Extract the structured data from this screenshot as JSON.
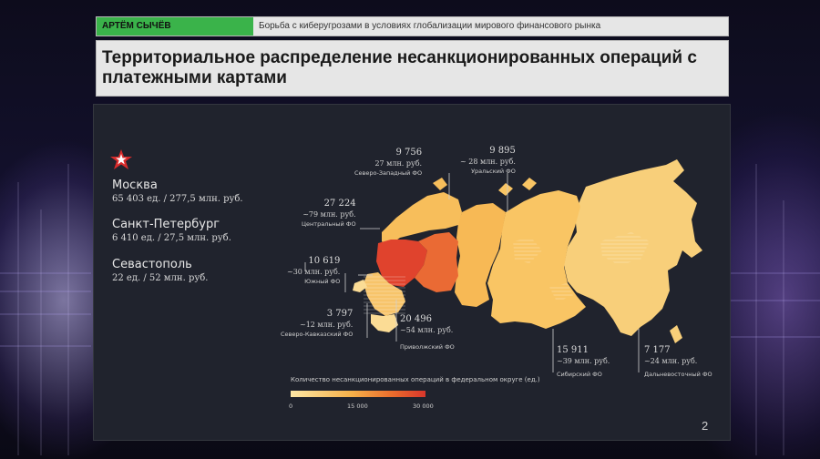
{
  "header": {
    "author": "АРТЁМ СЫЧЁВ",
    "subject": "Борьба с киберугрозами в условиях глобализации мирового финансового рынка"
  },
  "title": "Территориальное распределение несанкционированных операций с платежными картами",
  "cities": [
    {
      "name": "Москва",
      "stats": "65 403 ед. / 277,5 млн. руб."
    },
    {
      "name": "Санкт-Петербург",
      "stats": "6 410 ед. / 27,5 млн. руб."
    },
    {
      "name": "Севастополь",
      "stats": "22 ед. / 52 млн. руб."
    }
  ],
  "districts": {
    "northwest": {
      "count": "9 756",
      "volume": "27 млн. руб.",
      "name": "Северо-Западный ФО",
      "operations": 9756
    },
    "ural": {
      "count": "9 895",
      "volume": "~ 28 млн. руб.",
      "name": "Уральский ФО",
      "operations": 9895
    },
    "central": {
      "count": "27 224",
      "volume": "~79 млн. руб.",
      "name": "Центральный ФО",
      "operations": 27224
    },
    "south": {
      "count": "10 619",
      "volume": "~30 млн. руб.",
      "name": "Южный ФО",
      "operations": 10619
    },
    "ncaucasus": {
      "count": "3 797",
      "volume": "~12 млн. руб.",
      "name": "Северо-Кавказский ФО",
      "operations": 3797
    },
    "volga": {
      "count": "20 496",
      "volume": "~54 млн. руб.",
      "name": "Приволжский ФО",
      "operations": 20496
    },
    "siberia": {
      "count": "15 911",
      "volume": "~39 млн. руб.",
      "name": "Сибирский ФО",
      "operations": 15911
    },
    "fareast": {
      "count": "7 177",
      "volume": "~24 млн. руб.",
      "name": "Дальневосточный ФО",
      "operations": 7177
    }
  },
  "legend": {
    "title": "Количество несанкционированных операций в федеральном округе (ед.)",
    "ticks": [
      "0",
      "15 000",
      "30 000"
    ],
    "range": [
      0,
      30000
    ],
    "colors": [
      "#fde7a5",
      "#f6b14a",
      "#ea6d2d",
      "#d8362b"
    ]
  },
  "page_number": "2",
  "colors": {
    "accent_green": "#3ab34a",
    "panel_bg": "#20232d",
    "star": "#d92b2b"
  },
  "icons": [
    "star-icon"
  ]
}
